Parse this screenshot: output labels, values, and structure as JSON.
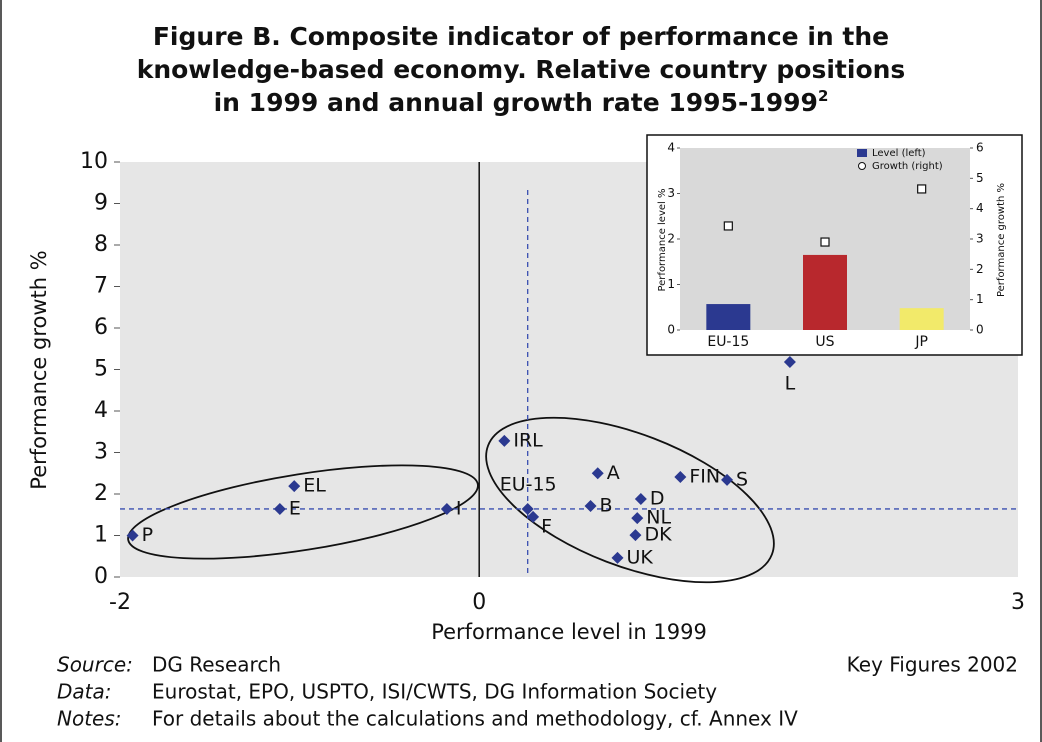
{
  "chart_data": [
    {
      "type": "scatter",
      "title": [
        "Figure B. Composite indicator of performance in the",
        "knowledge-based economy. Relative country positions",
        "in 1999 and annual growth rate 1995-1999"
      ],
      "title_footnote": "2",
      "xlabel": "Performance level in 1999",
      "ylabel": "Performance growth %",
      "labels": [
        "P",
        "E",
        "EL",
        "I",
        "IRL",
        "EU-15",
        "F",
        "B",
        "A",
        "D",
        "NL",
        "DK",
        "UK",
        "FIN",
        "S",
        "L"
      ],
      "x": [
        -1.93,
        -1.11,
        -1.03,
        -0.18,
        0.14,
        0.27,
        0.3,
        0.62,
        0.66,
        0.9,
        0.88,
        0.87,
        0.77,
        1.12,
        1.38,
        1.73
      ],
      "y": [
        1.0,
        1.64,
        2.19,
        1.64,
        3.28,
        1.64,
        1.45,
        1.71,
        2.5,
        1.88,
        1.42,
        1.01,
        0.46,
        2.41,
        2.34,
        5.18
      ],
      "color": "#2b3990",
      "reference_color": "#3a4fb0",
      "xlim": [
        -2,
        3
      ],
      "xticks": [
        -2,
        0,
        3
      ],
      "ylim": [
        0,
        10
      ],
      "yticks": [
        0,
        1,
        2,
        3,
        4,
        5,
        6,
        7,
        8,
        9,
        10
      ]
    },
    {
      "type": "bar",
      "categories": [
        "EU-15",
        "US",
        "JP"
      ],
      "ylabel": "Performance level %",
      "y2label": "Performance growth %",
      "series": [
        {
          "name": "Level (left)",
          "color": "#2b3990",
          "colors": [
            "#2b3990",
            "#b8282d",
            "#f2ea6a"
          ],
          "values": [
            0.57,
            1.65,
            0.48
          ]
        },
        {
          "name": "Growth (right)",
          "axis": "y2",
          "color": "#ffffff",
          "values": [
            3.43,
            2.9,
            4.65
          ]
        }
      ],
      "ylim": [
        0,
        4
      ],
      "yticks": [
        0,
        1,
        2,
        3,
        4
      ],
      "y2lim": [
        0,
        6
      ],
      "y2ticks": [
        0,
        1,
        2,
        3,
        4,
        5,
        6
      ]
    }
  ],
  "footer": {
    "lines": [
      {
        "label": "Source:",
        "text": "DG Research"
      },
      {
        "label": "Data:",
        "text": "Eurostat, EPO, USPTO, ISI/CWTS, DG Information Society"
      },
      {
        "label": "Notes:",
        "text": "For details about the calculations and methodology, cf. Annex IV"
      }
    ],
    "publication": "Key Figures 2002"
  }
}
